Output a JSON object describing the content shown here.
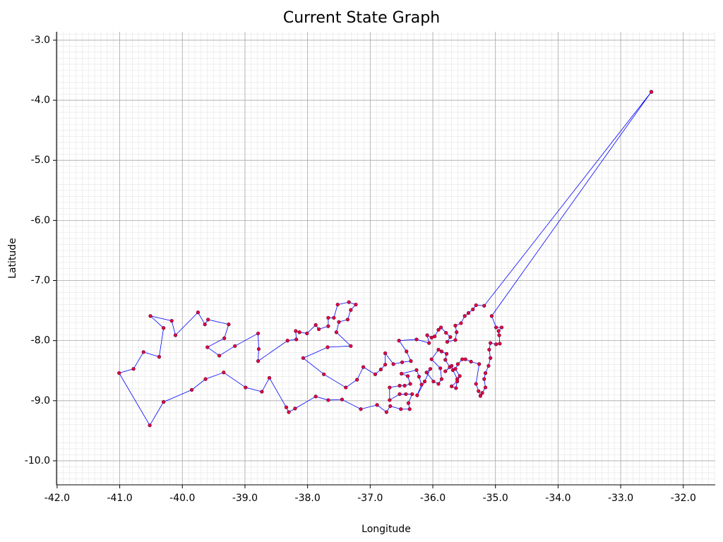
{
  "chart_data": {
    "type": "line",
    "title": "Current State Graph",
    "x_label": "Longitude",
    "y_label": "Latitude",
    "line_color": "#0000ff",
    "marker_color": "#e8003a",
    "grid": true,
    "minor_grid": true,
    "xlim": [
      -42.01,
      -31.49
    ],
    "ylim": [
      -10.4,
      -2.86
    ],
    "xticks": [
      {
        "value": -42,
        "label": "-42.0"
      },
      {
        "value": -41,
        "label": "-41.0"
      },
      {
        "value": -40,
        "label": "-40.0"
      },
      {
        "value": -39,
        "label": "-39.0"
      },
      {
        "value": -38,
        "label": "-38.0"
      },
      {
        "value": -37,
        "label": "-37.0"
      },
      {
        "value": -36,
        "label": "-36.0"
      },
      {
        "value": -35,
        "label": "-35.0"
      },
      {
        "value": -34,
        "label": "-34.0"
      },
      {
        "value": -33,
        "label": "-33.0"
      },
      {
        "value": -32,
        "label": "-32.0"
      }
    ],
    "yticks": [
      {
        "value": -3,
        "label": "-3.0"
      },
      {
        "value": -4,
        "label": "-4.0"
      },
      {
        "value": -5,
        "label": "-5.0"
      },
      {
        "value": -6,
        "label": "-6.0"
      },
      {
        "value": -7,
        "label": "-7.0"
      },
      {
        "value": -8,
        "label": "-8.0"
      },
      {
        "value": -9,
        "label": "-9.0"
      },
      {
        "value": -10,
        "label": "-10.0"
      }
    ],
    "x": [
      -32.51,
      -35.18,
      -35.31,
      -35.36,
      -35.43,
      -35.49,
      -35.55,
      -35.64,
      -35.62,
      -35.64,
      -35.77,
      -35.72,
      -35.79,
      -35.87,
      -35.91,
      -35.97,
      -36.02,
      -36.09,
      -36.06,
      -36.26,
      -36.54,
      -36.42,
      -36.35,
      -36.49,
      -36.63,
      -36.76,
      -36.76,
      -36.83,
      -36.92,
      -37.11,
      -37.21,
      -37.39,
      -37.74,
      -38.07,
      -37.68,
      -37.31,
      -37.54,
      -37.5,
      -37.36,
      -37.31,
      -37.23,
      -37.34,
      -37.52,
      -37.58,
      -37.67,
      -37.67,
      -37.82,
      -37.87,
      -38.01,
      -38.13,
      -38.19,
      -38.18,
      -38.32,
      -38.79,
      -38.78,
      -38.79,
      -39.16,
      -39.41,
      -39.6,
      -39.33,
      -39.26,
      -39.59,
      -39.64,
      -39.75,
      -40.11,
      -40.17,
      -40.51,
      -40.3,
      -40.37,
      -40.62,
      -40.78,
      -41.01,
      -40.52,
      -40.3,
      -39.85,
      -39.63,
      -39.34,
      -38.99,
      -38.73,
      -38.61,
      -38.34,
      -38.3,
      -38.2,
      -37.87,
      -37.67,
      -37.45,
      -37.15,
      -36.89,
      -36.74,
      -36.68,
      -36.51,
      -36.37,
      -36.39,
      -36.33,
      -36.43,
      -36.53,
      -36.69,
      -36.69,
      -36.53,
      -36.45,
      -36.36,
      -36.4,
      -36.5,
      -36.26,
      -36.22,
      -36.18,
      -36.25,
      -36.13,
      -36.04,
      -36.1,
      -35.99,
      -35.91,
      -35.86,
      -35.88,
      -36.02,
      -35.91,
      -35.86,
      -35.78,
      -35.8,
      -35.73,
      -35.8,
      -35.7,
      -35.68,
      -35.61,
      -35.63,
      -35.7,
      -35.61,
      -35.57,
      -35.64,
      -35.6,
      -35.53,
      -35.48,
      -35.39,
      -35.26,
      -35.31,
      -35.27,
      -35.24,
      -35.21,
      -35.16,
      -35.18,
      -35.16,
      -35.11,
      -35.08,
      -35.1,
      -35.08,
      -34.99,
      -34.93,
      -34.94,
      -34.95,
      -34.9,
      -34.99,
      -35.06,
      -32.51
    ],
    "values": [
      -3.86,
      -7.42,
      -7.41,
      -7.48,
      -7.54,
      -7.59,
      -7.71,
      -7.75,
      -7.86,
      -7.99,
      -8.02,
      -7.94,
      -7.87,
      -7.78,
      -7.82,
      -7.93,
      -7.95,
      -7.91,
      -8.04,
      -7.98,
      -8.0,
      -8.18,
      -8.34,
      -8.36,
      -8.39,
      -8.21,
      -8.4,
      -8.48,
      -8.56,
      -8.44,
      -8.65,
      -8.78,
      -8.56,
      -8.29,
      -8.11,
      -8.09,
      -7.86,
      -7.69,
      -7.65,
      -7.49,
      -7.4,
      -7.36,
      -7.4,
      -7.62,
      -7.62,
      -7.76,
      -7.81,
      -7.74,
      -7.88,
      -7.86,
      -7.84,
      -7.98,
      -8.0,
      -8.34,
      -8.14,
      -7.88,
      -8.09,
      -8.25,
      -8.11,
      -7.96,
      -7.73,
      -7.65,
      -7.73,
      -7.53,
      -7.91,
      -7.67,
      -7.59,
      -7.79,
      -8.27,
      -8.19,
      -8.47,
      -8.54,
      -9.41,
      -9.02,
      -8.82,
      -8.64,
      -8.53,
      -8.78,
      -8.85,
      -8.62,
      -9.11,
      -9.19,
      -9.13,
      -8.93,
      -8.99,
      -8.98,
      -9.14,
      -9.07,
      -9.19,
      -9.09,
      -9.14,
      -9.14,
      -9.04,
      -8.89,
      -8.89,
      -8.89,
      -8.99,
      -8.78,
      -8.75,
      -8.75,
      -8.72,
      -8.59,
      -8.55,
      -8.49,
      -8.6,
      -8.73,
      -8.91,
      -8.68,
      -8.47,
      -8.53,
      -8.68,
      -8.72,
      -8.64,
      -8.46,
      -8.31,
      -8.15,
      -8.18,
      -8.22,
      -8.32,
      -8.44,
      -8.51,
      -8.42,
      -8.49,
      -8.64,
      -8.79,
      -8.76,
      -8.68,
      -8.59,
      -8.47,
      -8.39,
      -8.31,
      -8.31,
      -8.35,
      -8.39,
      -8.72,
      -8.84,
      -8.92,
      -8.87,
      -8.78,
      -8.64,
      -8.54,
      -8.42,
      -8.29,
      -8.15,
      -8.04,
      -8.06,
      -8.05,
      -7.91,
      -7.84,
      -7.78,
      -7.78,
      -7.59,
      -3.86
    ]
  }
}
